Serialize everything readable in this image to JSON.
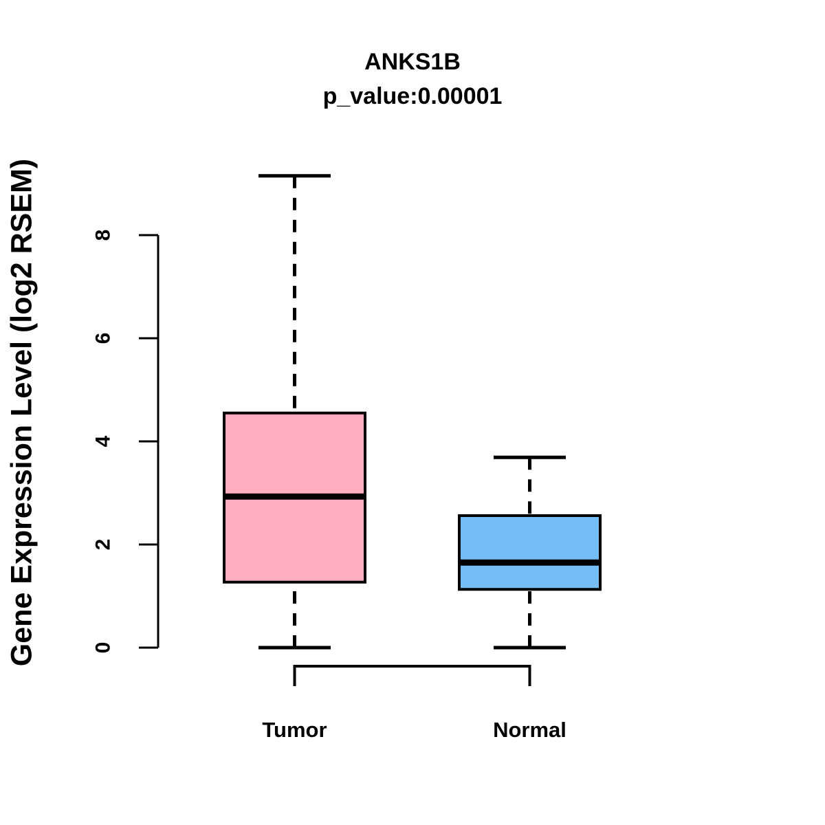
{
  "figure": {
    "title": "ANKS1B",
    "subtitle": "p_value:0.00001",
    "ylabel": "Gene Expression Level (log2 RSEM)"
  },
  "chart_data": {
    "type": "boxplot",
    "title": "ANKS1B",
    "subtitle": "p_value:0.00001",
    "xlabel": "",
    "ylabel": "Gene Expression Level (log2 RSEM)",
    "ylim": [
      0,
      9.2
    ],
    "yticks": [
      0,
      2,
      4,
      6,
      8
    ],
    "grid": false,
    "legend": "none",
    "categories": [
      "Tumor",
      "Normal"
    ],
    "series": [
      {
        "name": "Tumor",
        "whisker_low": 0,
        "q1": 1.27,
        "median": 2.93,
        "q3": 4.55,
        "whisker_high": 9.15,
        "fill": "#ffaec1"
      },
      {
        "name": "Normal",
        "whisker_low": 0,
        "q1": 1.13,
        "median": 1.65,
        "q3": 2.56,
        "whisker_high": 3.69,
        "fill": "#74bdf6"
      }
    ],
    "comparison_bracket": {
      "between": [
        "Tumor",
        "Normal"
      ],
      "position": "below-axis"
    },
    "colors": {
      "box_border": "#000000",
      "median": "#000000",
      "whisker": "#000000",
      "axis": "#000000",
      "background": "#ffffff"
    }
  }
}
